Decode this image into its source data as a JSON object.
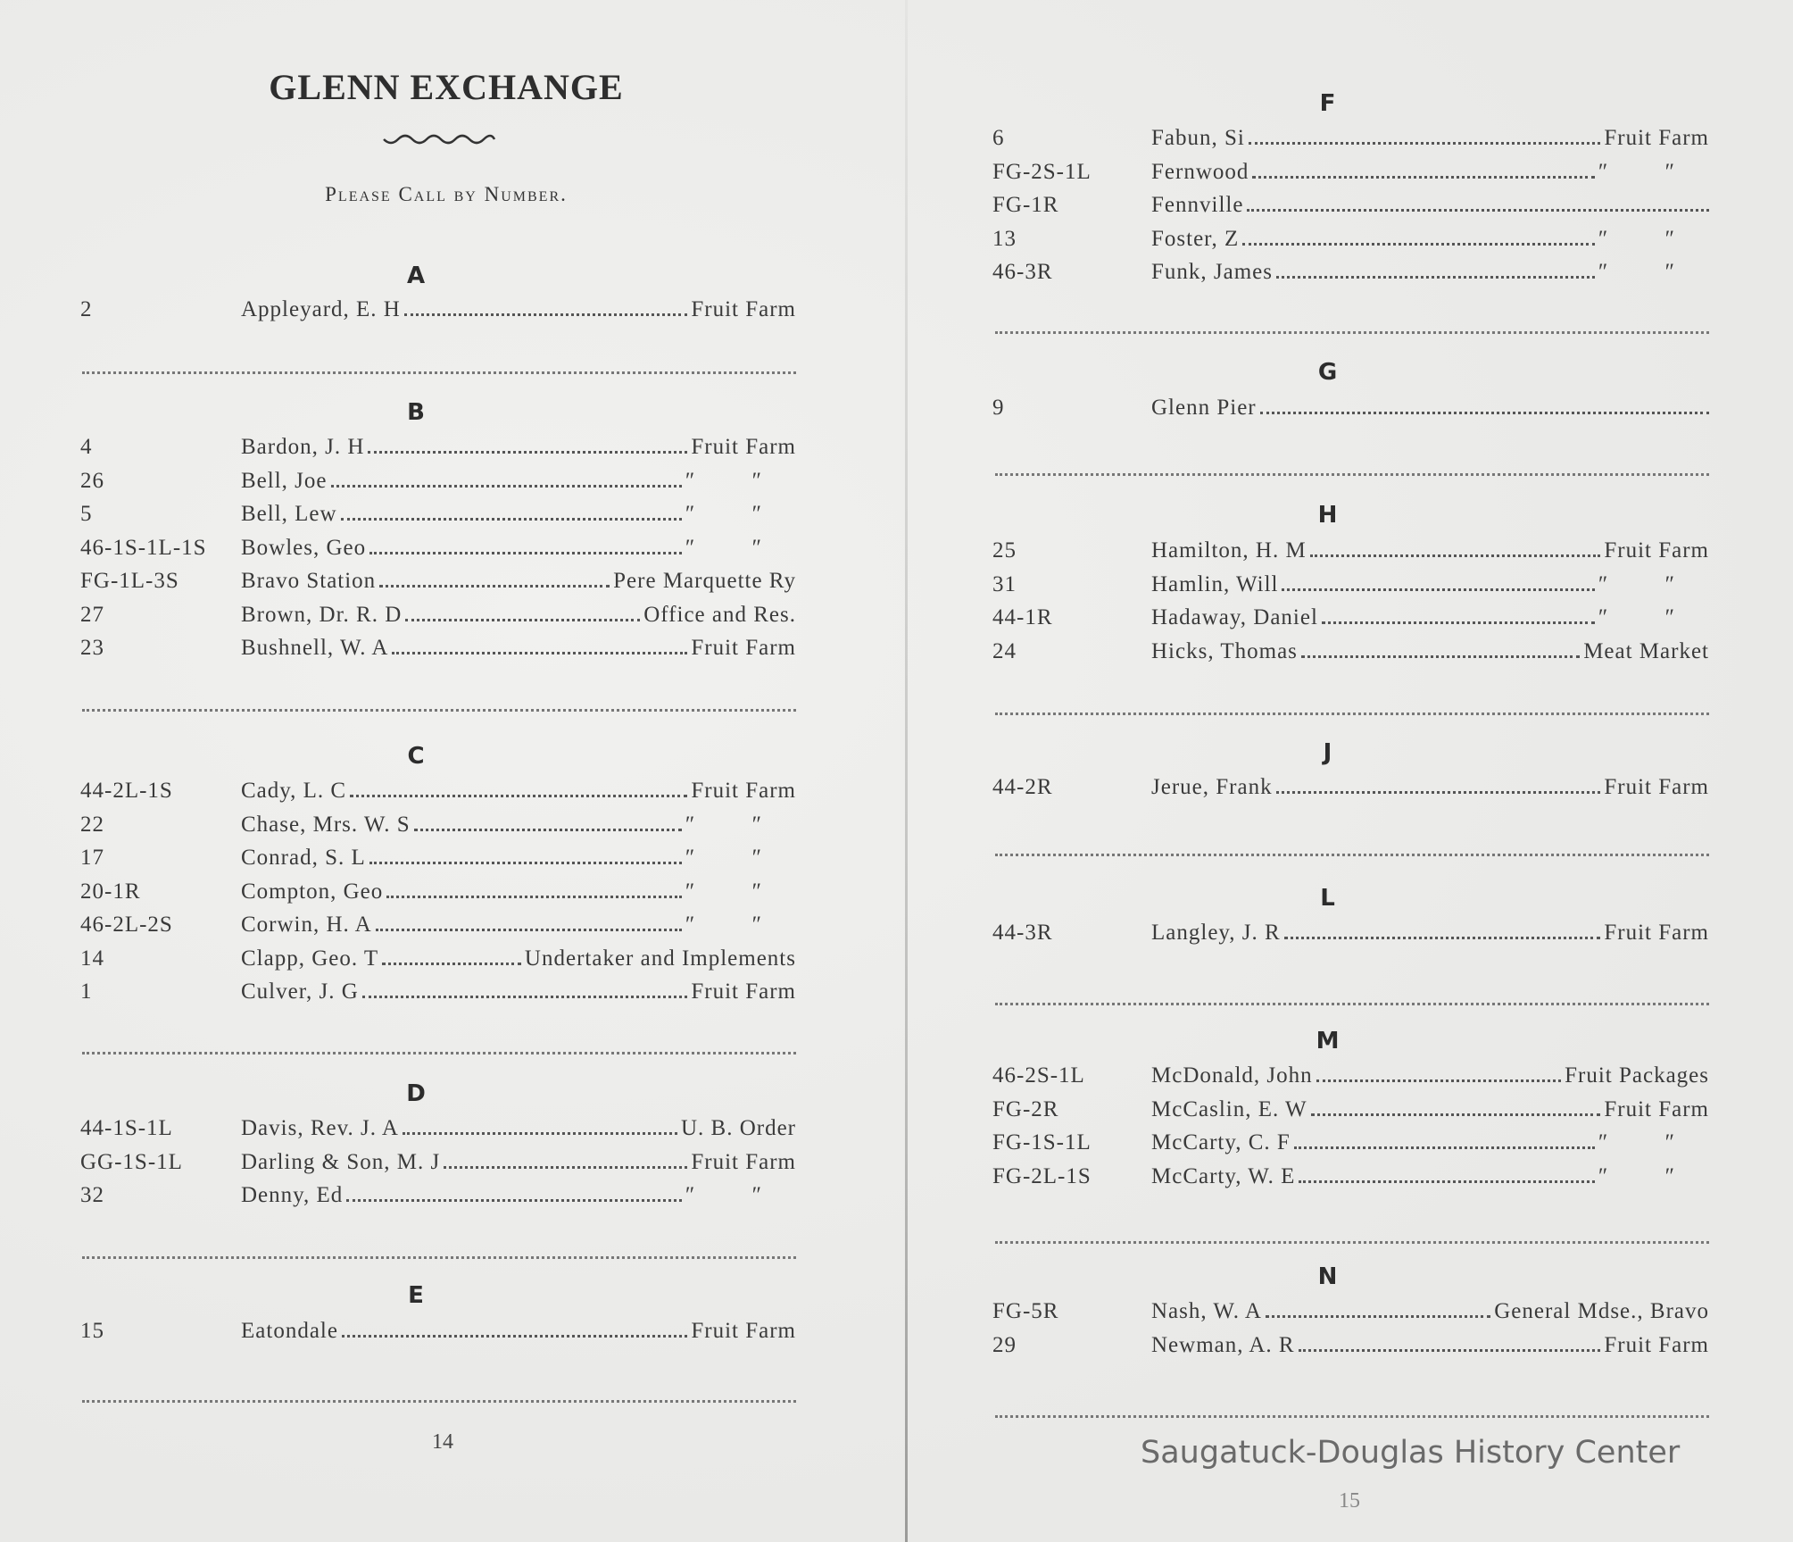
{
  "left_page": {
    "title": "GLENN EXCHANGE",
    "subtitle": "Please Call by Number.",
    "page_number": "14",
    "sections": [
      {
        "letter": "A",
        "entries": [
          {
            "number": "2",
            "name": "Appleyard, E. H",
            "value": "Fruit Farm"
          }
        ]
      },
      {
        "letter": "B",
        "entries": [
          {
            "number": "4",
            "name": "Bardon, J. H",
            "value": "Fruit Farm"
          },
          {
            "number": "26",
            "name": "Bell, Joe",
            "value": "″ ″"
          },
          {
            "number": "5",
            "name": "Bell, Lew",
            "value": "″ ″"
          },
          {
            "number": "46-1S-1L-1S",
            "name": "Bowles, Geo",
            "value": "″ ″"
          },
          {
            "number": "FG-1L-3S",
            "name": "Bravo Station",
            "value": "Pere Marquette Ry"
          },
          {
            "number": "27",
            "name": "Brown, Dr. R. D",
            "value": "Office and Res."
          },
          {
            "number": "23",
            "name": "Bushnell, W. A",
            "value": "Fruit Farm"
          }
        ]
      },
      {
        "letter": "C",
        "entries": [
          {
            "number": "44-2L-1S",
            "name": "Cady, L. C",
            "value": "Fruit Farm"
          },
          {
            "number": "22",
            "name": "Chase, Mrs. W. S",
            "value": "″ ″"
          },
          {
            "number": "17",
            "name": "Conrad, S. L",
            "value": "″ ″"
          },
          {
            "number": "20-1R",
            "name": "Compton, Geo",
            "value": "″ ″"
          },
          {
            "number": "46-2L-2S",
            "name": "Corwin, H. A",
            "value": "″ ″"
          },
          {
            "number": "14",
            "name": "Clapp, Geo. T",
            "value": "Undertaker and Implements"
          },
          {
            "number": "1",
            "name": "Culver, J. G",
            "value": "Fruit Farm"
          }
        ]
      },
      {
        "letter": "D",
        "entries": [
          {
            "number": "44-1S-1L",
            "name": "Davis, Rev. J. A",
            "value": "U. B. Order"
          },
          {
            "number": "GG-1S-1L",
            "name": "Darling & Son, M. J",
            "value": "Fruit Farm"
          },
          {
            "number": "32",
            "name": "Denny, Ed",
            "value": "″ ″"
          }
        ]
      },
      {
        "letter": "E",
        "entries": [
          {
            "number": "15",
            "name": "Eatondale",
            "value": "Fruit Farm"
          }
        ]
      }
    ]
  },
  "right_page": {
    "sections": [
      {
        "letter": "F",
        "entries": [
          {
            "number": "6",
            "name": "Fabun, Si",
            "value": "Fruit Farm"
          },
          {
            "number": "FG-2S-1L",
            "name": "Fernwood",
            "value": "″ ″"
          },
          {
            "number": "FG-1R",
            "name": "Fennville",
            "value": ""
          },
          {
            "number": "13",
            "name": "Foster, Z",
            "value": "″ ″"
          },
          {
            "number": "46-3R",
            "name": "Funk, James",
            "value": "″ ″"
          }
        ]
      },
      {
        "letter": "G",
        "entries": [
          {
            "number": "9",
            "name": "Glenn Pier",
            "value": ""
          }
        ]
      },
      {
        "letter": "H",
        "entries": [
          {
            "number": "25",
            "name": "Hamilton, H. M",
            "value": "Fruit Farm"
          },
          {
            "number": "31",
            "name": "Hamlin, Will",
            "value": "″ ″"
          },
          {
            "number": "44-1R",
            "name": "Hadaway, Daniel",
            "value": "″ ″"
          },
          {
            "number": "24",
            "name": "Hicks, Thomas",
            "value": "Meat Market"
          }
        ]
      },
      {
        "letter": "J",
        "entries": [
          {
            "number": "44-2R",
            "name": "Jerue, Frank",
            "value": "Fruit Farm"
          }
        ]
      },
      {
        "letter": "L",
        "entries": [
          {
            "number": "44-3R",
            "name": "Langley, J. R",
            "value": "Fruit Farm"
          }
        ]
      },
      {
        "letter": "M",
        "entries": [
          {
            "number": "46-2S-1L",
            "name": "McDonald, John",
            "value": "Fruit Packages"
          },
          {
            "number": "FG-2R",
            "name": "McCaslin, E. W",
            "value": "Fruit Farm"
          },
          {
            "number": "FG-1S-1L",
            "name": "McCarty, C. F",
            "value": "″ ″"
          },
          {
            "number": "FG-2L-1S",
            "name": "McCarty, W. E",
            "value": "″ ″"
          }
        ]
      },
      {
        "letter": "N",
        "entries": [
          {
            "number": "FG-5R",
            "name": "Nash, W. A",
            "value": "General Mdse., Bravo"
          },
          {
            "number": "29",
            "name": "Newman, A. R",
            "value": "Fruit Farm"
          }
        ]
      }
    ],
    "page_number": "15"
  },
  "watermark": "Saugatuck-Douglas History Center"
}
